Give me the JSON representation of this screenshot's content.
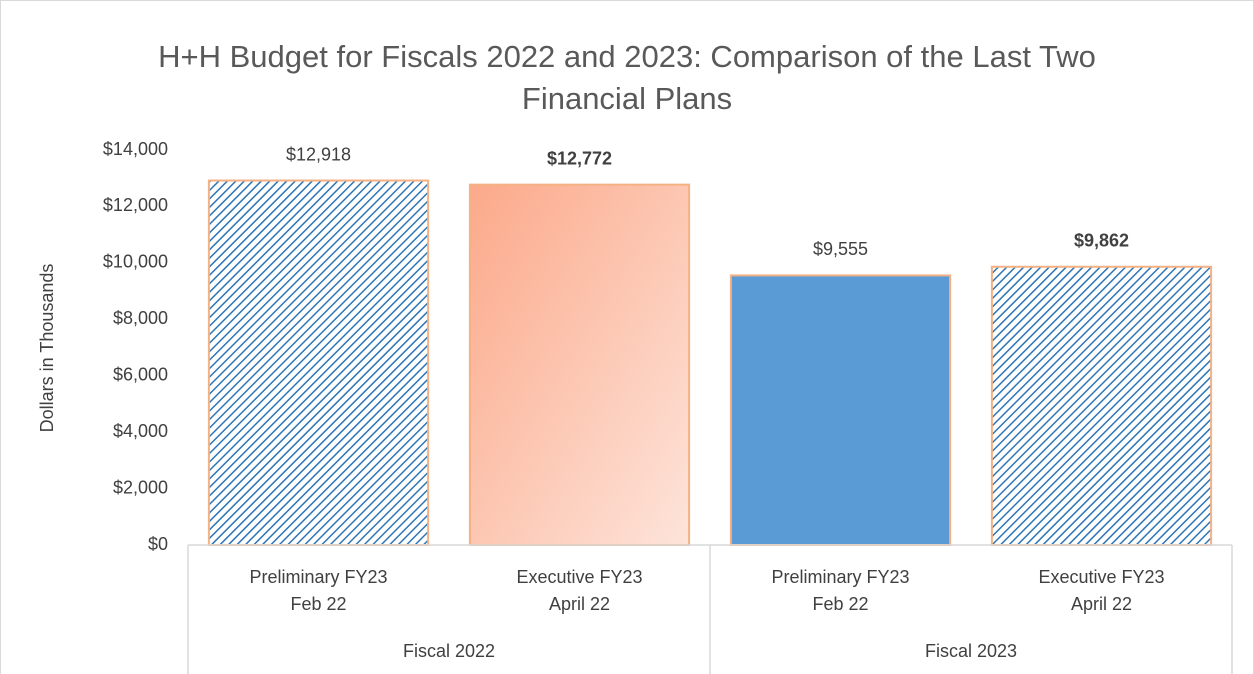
{
  "chart_data": {
    "type": "bar",
    "title": "H+H Budget for Fiscals 2022 and 2023: Comparison of the Last Two Financial Plans",
    "y_axis_label": "Dollars in Thousands",
    "categories": [
      [
        "Preliminary FY23",
        "Feb 22"
      ],
      [
        "Executive FY23",
        "April 22"
      ],
      [
        "Preliminary FY23",
        "Feb 22"
      ],
      [
        "Executive FY23",
        "April 22"
      ]
    ],
    "groups": [
      "Fiscal 2022",
      "Fiscal 2023"
    ],
    "values": [
      12918,
      12772,
      9555,
      9862
    ],
    "value_labels": [
      "$12,918",
      "$12,772",
      "$9,555",
      "$9,862"
    ],
    "label_bold": [
      false,
      true,
      false,
      true
    ],
    "patterns": [
      "hatch",
      "gradient",
      "solid",
      "hatch"
    ],
    "colors": [
      "#2e75b6",
      "#fca98a",
      "#5b9bd5",
      "#2e75b6"
    ],
    "edge_color": "#f4b183",
    "ylim": [
      0,
      14000
    ],
    "yticks": [
      {
        "value": 0,
        "label": "$0"
      },
      {
        "value": 2000,
        "label": "$2,000"
      },
      {
        "value": 4000,
        "label": "$4,000"
      },
      {
        "value": 6000,
        "label": "$6,000"
      },
      {
        "value": 8000,
        "label": "$8,000"
      },
      {
        "value": 10000,
        "label": "$10,000"
      },
      {
        "value": 12000,
        "label": "$12,000"
      },
      {
        "value": 14000,
        "label": "$14,000"
      }
    ]
  }
}
